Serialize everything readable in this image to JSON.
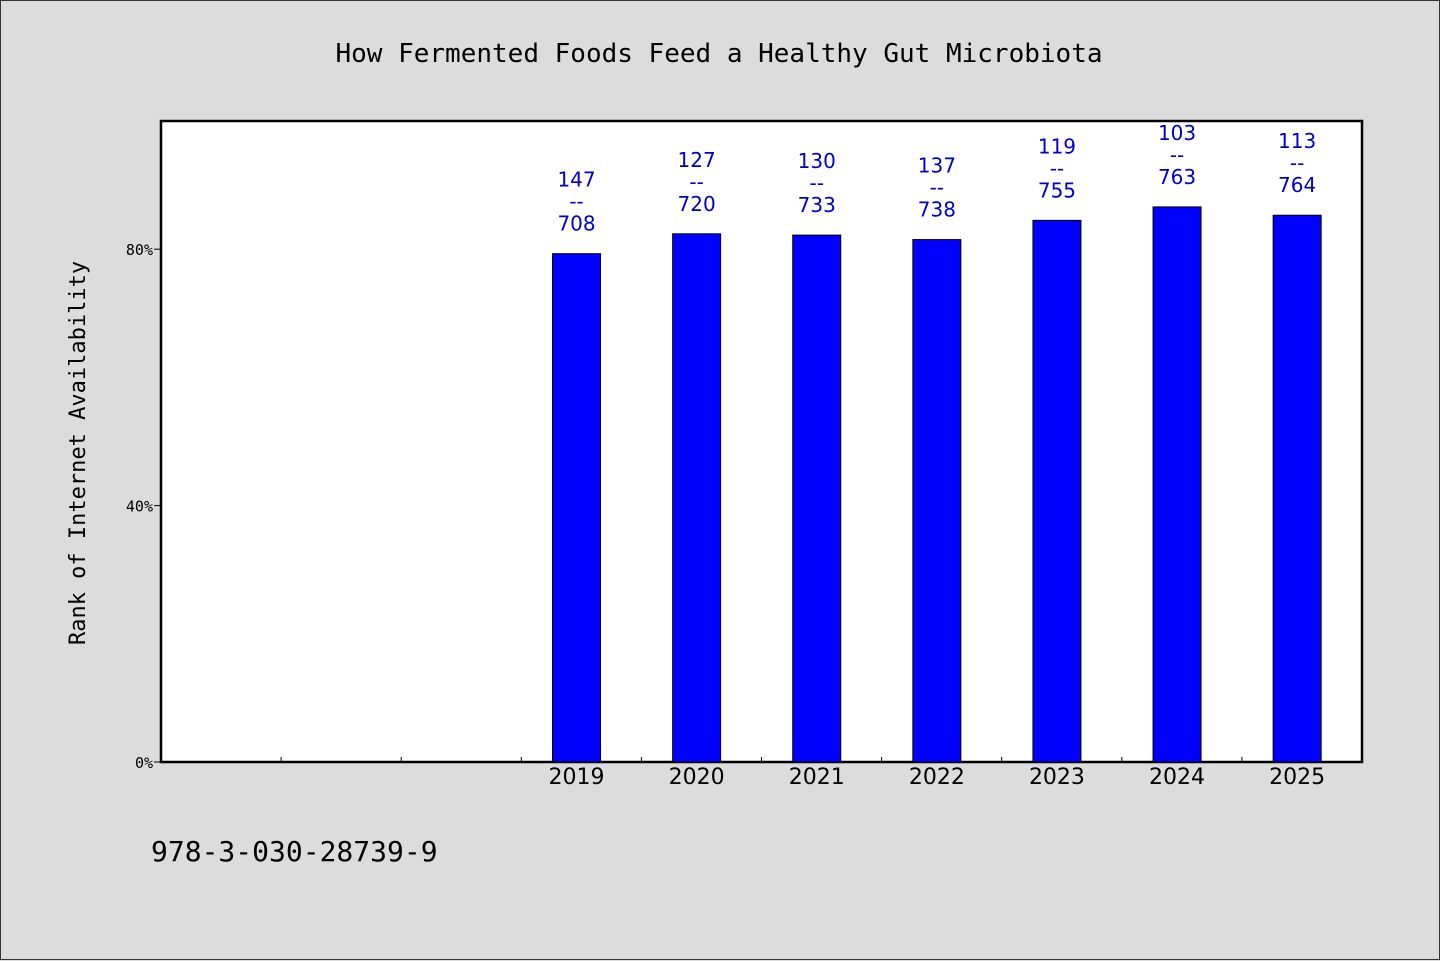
{
  "footer_text": "978-3-030-28739-9",
  "colors": {
    "bar": "#0000ff",
    "label": "#0000cc",
    "background": "#dcdcdc",
    "plot": "#ffffff"
  },
  "chart_data": {
    "type": "bar",
    "title": "How Fermented Foods Feed a Healthy Gut Microbiota",
    "xlabel": "",
    "ylabel": "Rank of Internet Availability",
    "ylim": [
      0,
      100
    ],
    "yticks": [
      0,
      40,
      80
    ],
    "ytick_labels": [
      "0%",
      "40%",
      "80%"
    ],
    "categories": [
      "",
      "",
      "",
      "2019",
      "2020",
      "2021",
      "2022",
      "2023",
      "2024",
      "2025"
    ],
    "values": [
      null,
      null,
      null,
      79.3,
      82.4,
      82.2,
      81.5,
      84.5,
      86.6,
      85.3
    ],
    "label_top": [
      "",
      "",
      "",
      "147",
      "127",
      "130",
      "137",
      "119",
      "103",
      "113"
    ],
    "label_mid": [
      "",
      "",
      "",
      "--",
      "--",
      "--",
      "--",
      "--",
      "--",
      "--"
    ],
    "label_bottom": [
      "",
      "",
      "",
      "708",
      "720",
      "733",
      "738",
      "755",
      "763",
      "764"
    ],
    "grid": false,
    "legend": "none"
  }
}
